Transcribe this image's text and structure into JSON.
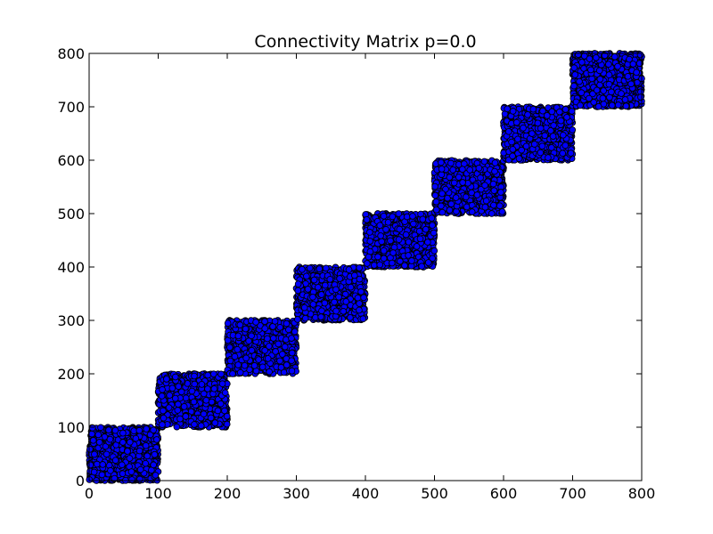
{
  "chart_data": {
    "type": "scatter",
    "title": "Connectivity Matrix p=0.0",
    "xlabel": "",
    "ylabel": "",
    "xlim": [
      0,
      800
    ],
    "ylim": [
      0,
      800
    ],
    "xticks": [
      0,
      100,
      200,
      300,
      400,
      500,
      600,
      700,
      800
    ],
    "yticks": [
      0,
      100,
      200,
      300,
      400,
      500,
      600,
      700,
      800
    ],
    "grid": false,
    "marker": "circle",
    "marker_face_color": "#0000ff",
    "marker_edge_color": "#000000",
    "blocks": [
      {
        "x_range": [
          0,
          100
        ],
        "y_range": [
          0,
          100
        ]
      },
      {
        "x_range": [
          100,
          200
        ],
        "y_range": [
          100,
          200
        ]
      },
      {
        "x_range": [
          200,
          300
        ],
        "y_range": [
          200,
          300
        ]
      },
      {
        "x_range": [
          300,
          400
        ],
        "y_range": [
          300,
          400
        ]
      },
      {
        "x_range": [
          400,
          500
        ],
        "y_range": [
          400,
          500
        ]
      },
      {
        "x_range": [
          500,
          600
        ],
        "y_range": [
          500,
          600
        ]
      },
      {
        "x_range": [
          600,
          700
        ],
        "y_range": [
          600,
          700
        ]
      },
      {
        "x_range": [
          700,
          800
        ],
        "y_range": [
          700,
          800
        ]
      }
    ]
  }
}
